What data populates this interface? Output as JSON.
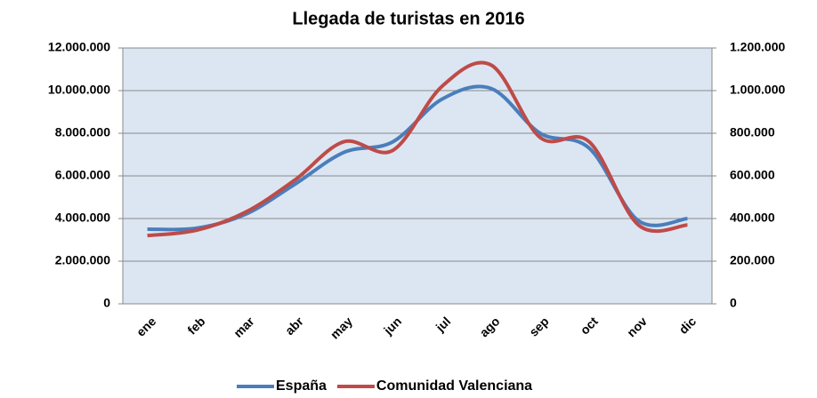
{
  "chart_data": {
    "type": "line",
    "title": "Llegada de turistas en 2016",
    "categories": [
      "ene",
      "feb",
      "mar",
      "abr",
      "may",
      "jun",
      "jul",
      "ago",
      "sep",
      "oct",
      "nov",
      "dic"
    ],
    "series": [
      {
        "name": "España",
        "color": "#4a7ebb",
        "values": [
          3500000,
          3550000,
          4200000,
          5600000,
          7100000,
          7600000,
          9600000,
          10100000,
          8000000,
          7300000,
          3900000,
          4000000
        ]
      },
      {
        "name": "Comunidad Valenciana",
        "color": "#be4b48",
        "axis": "y2",
        "values": [
          320000,
          345000,
          430000,
          580000,
          760000,
          720000,
          1020000,
          1120000,
          780000,
          760000,
          370000,
          370000
        ]
      }
    ],
    "ylim": [
      0,
      12000000
    ],
    "yticks": [
      0,
      {
        "value": 2000000,
        "label": "2.000.000"
      },
      {
        "value": 4000000,
        "label": "4.000.000"
      },
      {
        "value": 6000000,
        "label": "6.000.000"
      },
      {
        "value": 8000000,
        "label": "8.000.000"
      },
      {
        "value": 10000000,
        "label": "10.000.000"
      },
      {
        "value": 12000000,
        "label": "12.000.000"
      }
    ],
    "y2lim": [
      0,
      1200000
    ],
    "y2ticks": [
      0,
      {
        "value": 200000,
        "label": "200.000"
      },
      {
        "value": 400000,
        "label": "400.000"
      },
      {
        "value": 600000,
        "label": "600.000"
      },
      {
        "value": 800000,
        "label": "800.000"
      },
      {
        "value": 1000000,
        "label": "1.000.000"
      },
      {
        "value": 1200000,
        "label": "1.200.000"
      }
    ],
    "grid": true,
    "smooth": true,
    "legend": "bottom"
  }
}
